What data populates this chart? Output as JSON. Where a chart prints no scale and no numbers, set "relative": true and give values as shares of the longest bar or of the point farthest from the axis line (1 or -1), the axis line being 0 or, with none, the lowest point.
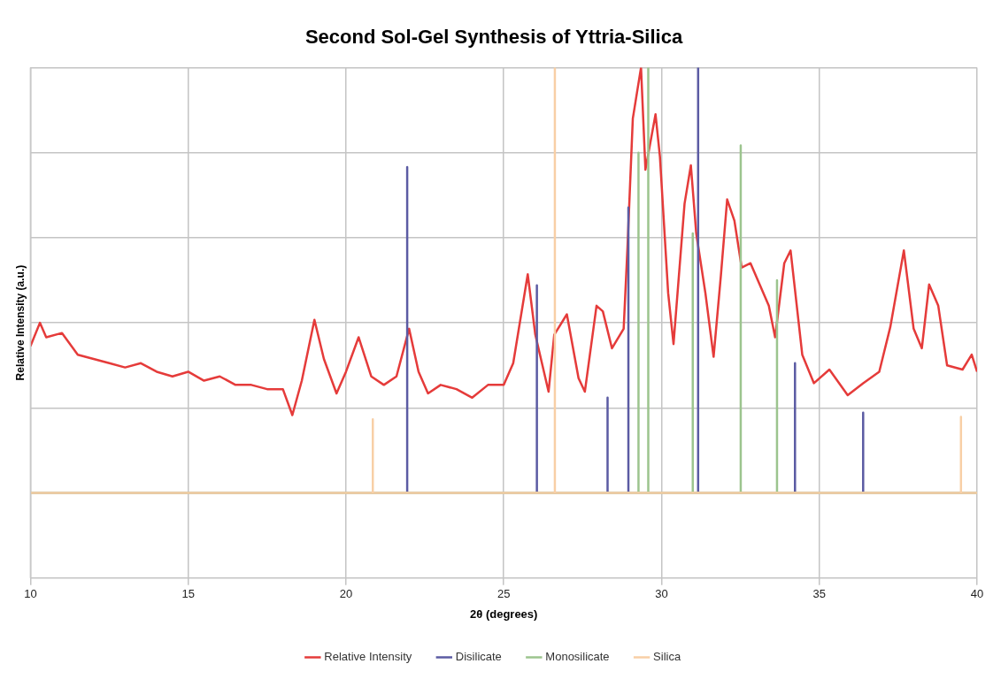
{
  "chart_data": {
    "type": "line",
    "title": "Second Sol-Gel Synthesis of Yttria-Silica",
    "xlabel": "2θ (degrees)",
    "ylabel": "Relative Intensity (a.u.)",
    "relative": true,
    "xlim": [
      10,
      40
    ],
    "xticks": [
      10,
      15,
      20,
      25,
      30,
      35,
      40
    ],
    "grid": true,
    "legend": "bottom",
    "marker": "none",
    "line_style": "solid",
    "series": [
      {
        "name": "Relative Intensity",
        "color": "#e53b3a",
        "x": [
          10,
          10.3,
          10.5,
          11,
          11.5,
          12,
          12.5,
          13,
          13.5,
          14,
          14.5,
          15,
          15.5,
          16,
          16.5,
          17,
          17.5,
          18,
          18.3,
          18.6,
          19,
          19.3,
          19.7,
          20,
          20.4,
          20.8,
          21.2,
          21.6,
          22,
          22.3,
          22.6,
          23,
          23.5,
          24,
          24.5,
          25,
          25.3,
          25.76,
          26,
          26.42,
          26.6,
          27,
          27.37,
          27.57,
          27.94,
          28.14,
          28.43,
          28.8,
          28.92,
          29.09,
          29.35,
          29.49,
          29.81,
          29.95,
          30.21,
          30.38,
          30.73,
          30.93,
          31.1,
          31.39,
          31.65,
          31.88,
          32.08,
          32.31,
          32.54,
          32.82,
          33.11,
          33.4,
          33.6,
          33.89,
          34.09,
          34.46,
          34.83,
          35.32,
          35.9,
          36.39,
          36.9,
          37.25,
          37.68,
          37.99,
          38.25,
          38.48,
          38.77,
          39.05,
          39.54,
          39.83,
          40
        ],
        "values": [
          0.345,
          0.4,
          0.366,
          0.376,
          0.325,
          0.315,
          0.305,
          0.295,
          0.305,
          0.285,
          0.274,
          0.285,
          0.264,
          0.274,
          0.254,
          0.254,
          0.244,
          0.244,
          0.183,
          0.264,
          0.407,
          0.315,
          0.234,
          0.285,
          0.366,
          0.274,
          0.254,
          0.274,
          0.386,
          0.285,
          0.234,
          0.254,
          0.244,
          0.224,
          0.254,
          0.254,
          0.305,
          0.514,
          0.372,
          0.238,
          0.372,
          0.42,
          0.27,
          0.238,
          0.44,
          0.427,
          0.34,
          0.386,
          0.575,
          0.88,
          1.0,
          0.76,
          0.89,
          0.79,
          0.47,
          0.35,
          0.68,
          0.77,
          0.61,
          0.47,
          0.32,
          0.51,
          0.69,
          0.64,
          0.53,
          0.54,
          0.49,
          0.44,
          0.366,
          0.54,
          0.57,
          0.325,
          0.258,
          0.29,
          0.23,
          0.258,
          0.285,
          0.39,
          0.57,
          0.386,
          0.34,
          0.49,
          0.44,
          0.3,
          0.29,
          0.325,
          0.285
        ]
      },
      {
        "name": "Disilicate",
        "color": "#5b5ba3",
        "x": [
          10,
          21.94,
          21.94,
          21.94,
          26.05,
          26.05,
          26.05,
          28.29,
          28.29,
          28.29,
          28.95,
          28.95,
          28.95,
          31.16,
          31.16,
          31.16,
          34.23,
          34.23,
          34.23,
          36.39,
          36.39,
          36.39,
          40
        ],
        "values": [
          0,
          0,
          0.766,
          0,
          0,
          0.488,
          0,
          0,
          0.224,
          0,
          0,
          0.671,
          0,
          0,
          1.0,
          0,
          0,
          0.305,
          0,
          0,
          0.189,
          0,
          0
        ]
      },
      {
        "name": "Monosilicate",
        "color": "#9cc48e",
        "x": [
          10,
          29.27,
          29.27,
          29.27,
          29.58,
          29.58,
          29.58,
          30.99,
          30.99,
          30.99,
          32.51,
          32.51,
          32.51,
          33.66,
          33.66,
          33.66,
          40
        ],
        "values": [
          0,
          0,
          0.8,
          0,
          0,
          1.0,
          0,
          0,
          0.61,
          0,
          0,
          0.817,
          0,
          0,
          0.5,
          0,
          0
        ]
      },
      {
        "name": "Silica",
        "color": "#f8cfa6",
        "x": [
          10,
          20.85,
          20.85,
          20.85,
          26.62,
          26.62,
          26.62,
          39.49,
          39.49,
          39.49,
          40
        ],
        "values": [
          0,
          0,
          0.173,
          0,
          0,
          1.0,
          0,
          0,
          0.179,
          0,
          0
        ]
      }
    ]
  }
}
